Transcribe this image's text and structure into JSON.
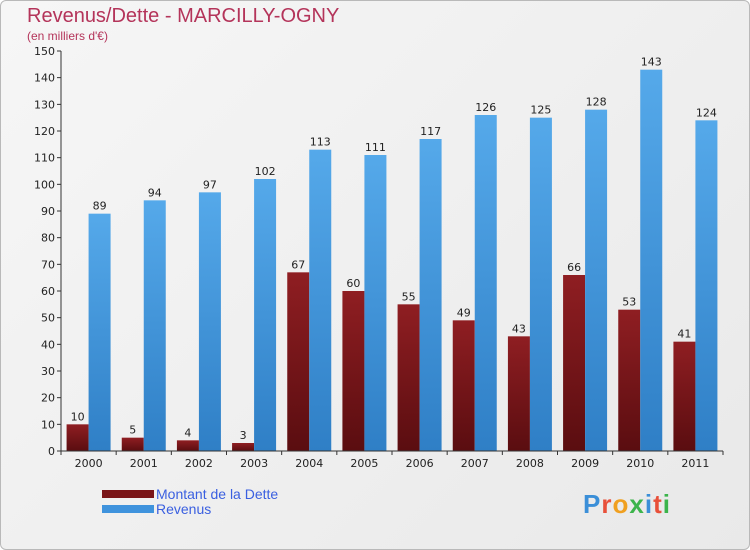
{
  "title": "Revenus/Dette - MARCILLY-OGNY",
  "subtitle": "(en milliers d'€)",
  "brand": {
    "text": "Proxiti",
    "letter_colors": [
      "#3b8fd8",
      "#e8503a",
      "#f0a020",
      "#3cb44b",
      "#3b8fd8",
      "#e8503a",
      "#3cb44b"
    ]
  },
  "colors": {
    "debt": "#7a1518",
    "revenue": "#3f93dd",
    "title": "#b4345a",
    "legend_text": "#3a5fe0"
  },
  "chart_data": {
    "type": "bar",
    "title": "Revenus/Dette - MARCILLY-OGNY",
    "subtitle": "(en milliers d'€)",
    "categories": [
      "2000",
      "2001",
      "2002",
      "2003",
      "2004",
      "2005",
      "2006",
      "2007",
      "2008",
      "2009",
      "2010",
      "2011"
    ],
    "series": [
      {
        "name": "Montant de la Dette",
        "values": [
          10,
          5,
          4,
          3,
          67,
          60,
          55,
          49,
          43,
          66,
          53,
          41
        ]
      },
      {
        "name": "Revenus",
        "values": [
          89,
          94,
          97,
          102,
          113,
          111,
          117,
          126,
          125,
          128,
          143,
          124
        ]
      }
    ],
    "ylim": [
      0,
      150
    ],
    "ytick_step": 10,
    "grid": false,
    "data_labels": true,
    "legend_position": "bottom-left"
  }
}
